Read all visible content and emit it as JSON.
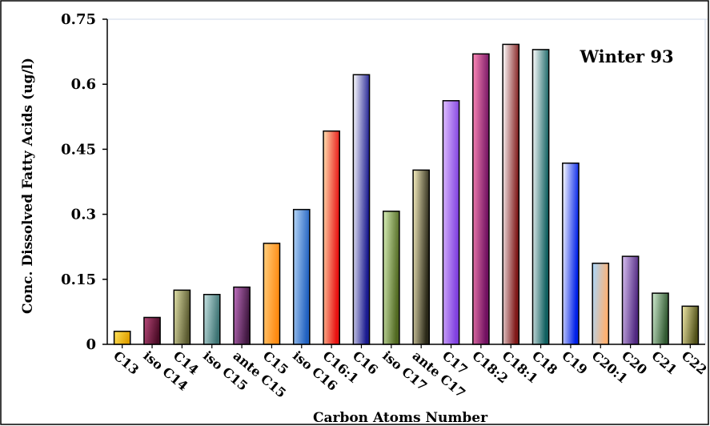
{
  "chart_data": {
    "type": "bar",
    "title": "Winter 93",
    "xlabel": "Carbon Atoms Number",
    "ylabel": "Conc. Dissolved Fatty Acids (ug/l)",
    "ylim": [
      0,
      0.75
    ],
    "yticks": [
      "0",
      "0.15",
      "0.3",
      "0.45",
      "0.6",
      "0.75"
    ],
    "grid": false,
    "legend": "none",
    "categories": [
      "C13",
      "iso C14",
      "C14",
      "iso C15",
      "ante C15",
      "C15",
      "iso C16",
      "C16:1",
      "C16",
      "iso C17",
      "ante C17",
      "C17",
      "C18:2",
      "C18:1",
      "C18",
      "C19",
      "C20:1",
      "C20",
      "C21",
      "C22"
    ],
    "values": [
      0.03,
      0.062,
      0.125,
      0.115,
      0.132,
      0.233,
      0.311,
      0.492,
      0.622,
      0.307,
      0.402,
      0.562,
      0.67,
      0.692,
      0.68,
      0.418,
      0.187,
      0.203,
      0.118,
      0.088
    ],
    "bar_colors": [
      [
        "#ffe45c",
        "#e0a000"
      ],
      [
        "#b84a7a",
        "#4a0b26"
      ],
      [
        "#e0e0a8",
        "#5a5a30"
      ],
      [
        "#c8e4e4",
        "#3c7272"
      ],
      [
        "#c070c0",
        "#401840"
      ],
      [
        "#ffd080",
        "#ff8a10"
      ],
      [
        "#b8d8f8",
        "#2060c0"
      ],
      [
        "#ffe0b0",
        "#e81010"
      ],
      [
        "#ffffff",
        "#1a1a90"
      ],
      [
        "#d8f0b8",
        "#506820"
      ],
      [
        "#f8f0c0",
        "#2a2818"
      ],
      [
        "#e0c0ff",
        "#8040e0"
      ],
      [
        "#ff8ab8",
        "#701060"
      ],
      [
        "#ffffff",
        "#801818"
      ],
      [
        "#ffffff",
        "#106060"
      ],
      [
        "#ffffff",
        "#0020e8"
      ],
      [
        "#a8d8ff",
        "#ffb070"
      ],
      [
        "#d8c0f0",
        "#502880"
      ],
      [
        "#d0ecd0",
        "#305830"
      ],
      [
        "#f0e8a8",
        "#505018"
      ]
    ]
  }
}
